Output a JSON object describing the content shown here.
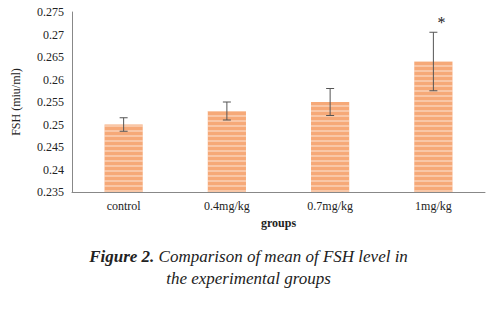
{
  "chart_data": {
    "type": "bar",
    "categories": [
      "control",
      "0.4mg/kg",
      "0.7mg/kg",
      "1mg/kg"
    ],
    "values": [
      0.25,
      0.253,
      0.255,
      0.264
    ],
    "errors": [
      0.0015,
      0.002,
      0.003,
      0.0065
    ],
    "color": "#f6a978",
    "x_label": "groups",
    "y_label": "FSH (miu/ml)",
    "ylim": [
      0.235,
      0.275
    ],
    "yticks": [
      0.235,
      0.24,
      0.245,
      0.25,
      0.255,
      0.26,
      0.265,
      0.27,
      0.275
    ],
    "grid": false,
    "annotations": [
      {
        "category": "1mg/kg",
        "text": "*"
      }
    ],
    "caption_label": "Figure 2.",
    "caption": "Comparison of mean of FSH level in the experimental groups"
  }
}
